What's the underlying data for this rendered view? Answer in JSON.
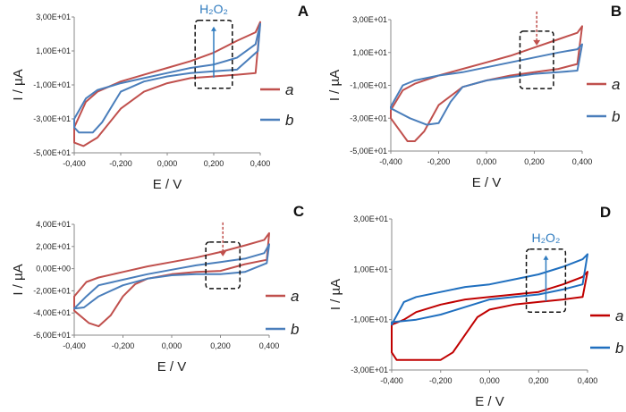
{
  "chart_data": [
    {
      "panel": "A",
      "type": "line",
      "xlabel": "E / V",
      "ylabel": "I / µA",
      "xlim": [
        -0.4,
        0.4
      ],
      "ylim": [
        -50,
        30
      ],
      "xticks": [
        "-0,400",
        "-0,200",
        "0,000",
        "0,200",
        "0,400"
      ],
      "yticks": [
        "3,00E+01",
        "1,00E+01",
        "-1,00E+01",
        "-3,00E+01",
        "-5,00E+01"
      ],
      "annotation": {
        "text": "H₂O₂",
        "direction": "up",
        "color": "#2f7bbf",
        "box_x": [
          0.12,
          0.28
        ],
        "box_y": [
          -12,
          28
        ]
      },
      "series": [
        {
          "name": "a",
          "color": "#c0504d",
          "points": [
            [
              -0.4,
              -35
            ],
            [
              -0.35,
              -20
            ],
            [
              -0.3,
              -14
            ],
            [
              -0.2,
              -8
            ],
            [
              -0.1,
              -4
            ],
            [
              0.0,
              0
            ],
            [
              0.1,
              4
            ],
            [
              0.2,
              9
            ],
            [
              0.3,
              16
            ],
            [
              0.38,
              21
            ],
            [
              0.4,
              27
            ],
            [
              0.38,
              -3
            ],
            [
              0.3,
              -4
            ],
            [
              0.2,
              -5
            ],
            [
              0.1,
              -6
            ],
            [
              0.0,
              -9
            ],
            [
              -0.1,
              -14
            ],
            [
              -0.2,
              -24
            ],
            [
              -0.3,
              -41
            ],
            [
              -0.36,
              -46
            ],
            [
              -0.4,
              -44
            ]
          ]
        },
        {
          "name": "b",
          "color": "#4a7ebb",
          "points": [
            [
              -0.4,
              -30
            ],
            [
              -0.35,
              -18
            ],
            [
              -0.3,
              -13
            ],
            [
              -0.2,
              -9
            ],
            [
              -0.1,
              -6
            ],
            [
              0.0,
              -3
            ],
            [
              0.1,
              0
            ],
            [
              0.2,
              2
            ],
            [
              0.3,
              6
            ],
            [
              0.38,
              14
            ],
            [
              0.4,
              26
            ],
            [
              0.39,
              10
            ],
            [
              0.3,
              -1
            ],
            [
              0.2,
              -2
            ],
            [
              0.1,
              -3
            ],
            [
              0.0,
              -5
            ],
            [
              -0.1,
              -8
            ],
            [
              -0.2,
              -14
            ],
            [
              -0.28,
              -32
            ],
            [
              -0.32,
              -38
            ],
            [
              -0.38,
              -38
            ],
            [
              -0.4,
              -35
            ]
          ]
        }
      ]
    },
    {
      "panel": "B",
      "type": "line",
      "xlabel": "E / V",
      "ylabel": "I / µA",
      "xlim": [
        -0.4,
        0.4
      ],
      "ylim": [
        -50,
        30
      ],
      "xticks": [
        "-0,400",
        "-0,200",
        "0,000",
        "0,200",
        "0,400"
      ],
      "yticks": [
        "3,00E+01",
        "1,00E+01",
        "-1,00E+01",
        "-3,00E+01",
        "-5,00E+01"
      ],
      "annotation": {
        "text": "",
        "direction": "down",
        "color": "#c0504d",
        "box_x": [
          0.14,
          0.28
        ],
        "box_y": [
          -12,
          23
        ]
      },
      "series": [
        {
          "name": "a",
          "color": "#c0504d",
          "points": [
            [
              -0.4,
              -25
            ],
            [
              -0.35,
              -13
            ],
            [
              -0.3,
              -9
            ],
            [
              -0.2,
              -4
            ],
            [
              -0.1,
              0
            ],
            [
              0.0,
              4
            ],
            [
              0.1,
              8
            ],
            [
              0.2,
              13
            ],
            [
              0.3,
              18
            ],
            [
              0.38,
              22
            ],
            [
              0.4,
              26
            ],
            [
              0.38,
              3
            ],
            [
              0.3,
              0
            ],
            [
              0.2,
              -2
            ],
            [
              0.1,
              -4
            ],
            [
              0.0,
              -7
            ],
            [
              -0.1,
              -11
            ],
            [
              -0.2,
              -22
            ],
            [
              -0.26,
              -38
            ],
            [
              -0.3,
              -44
            ],
            [
              -0.33,
              -44
            ],
            [
              -0.37,
              -36
            ],
            [
              -0.4,
              -30
            ]
          ]
        },
        {
          "name": "b",
          "color": "#4a7ebb",
          "points": [
            [
              -0.4,
              -23
            ],
            [
              -0.35,
              -10
            ],
            [
              -0.3,
              -7
            ],
            [
              -0.2,
              -4
            ],
            [
              -0.1,
              -2
            ],
            [
              0.0,
              1
            ],
            [
              0.1,
              4
            ],
            [
              0.2,
              7
            ],
            [
              0.3,
              10
            ],
            [
              0.38,
              12
            ],
            [
              0.4,
              15
            ],
            [
              0.38,
              -1
            ],
            [
              0.3,
              -2
            ],
            [
              0.2,
              -3
            ],
            [
              0.1,
              -5
            ],
            [
              0.0,
              -7
            ],
            [
              -0.1,
              -11
            ],
            [
              -0.15,
              -20
            ],
            [
              -0.2,
              -33
            ],
            [
              -0.25,
              -34
            ],
            [
              -0.32,
              -30
            ],
            [
              -0.4,
              -24
            ]
          ]
        }
      ]
    },
    {
      "panel": "C",
      "type": "line",
      "xlabel": "E / V",
      "ylabel": "I / µA",
      "xlim": [
        -0.4,
        0.4
      ],
      "ylim": [
        -60,
        40
      ],
      "xticks": [
        "-0,400",
        "-0,200",
        "0,000",
        "0,200",
        "0,400"
      ],
      "yticks": [
        "4,00E+01",
        "2,00E+01",
        "0,00E+00",
        "-2,00E+01",
        "-4,00E+01",
        "-6,00E+01"
      ],
      "annotation": {
        "text": "",
        "direction": "down",
        "color": "#c0504d",
        "box_x": [
          0.14,
          0.28
        ],
        "box_y": [
          -18,
          24
        ]
      },
      "series": [
        {
          "name": "a",
          "color": "#c0504d",
          "points": [
            [
              -0.4,
              -25
            ],
            [
              -0.35,
              -12
            ],
            [
              -0.3,
              -8
            ],
            [
              -0.2,
              -3
            ],
            [
              -0.1,
              2
            ],
            [
              0.0,
              6
            ],
            [
              0.1,
              10
            ],
            [
              0.2,
              15
            ],
            [
              0.3,
              21
            ],
            [
              0.38,
              26
            ],
            [
              0.4,
              32
            ],
            [
              0.39,
              8
            ],
            [
              0.3,
              4
            ],
            [
              0.2,
              -2
            ],
            [
              0.1,
              -3
            ],
            [
              0.0,
              -5
            ],
            [
              -0.1,
              -9
            ],
            [
              -0.15,
              -14
            ],
            [
              -0.2,
              -25
            ],
            [
              -0.25,
              -42
            ],
            [
              -0.3,
              -52
            ],
            [
              -0.34,
              -49
            ],
            [
              -0.4,
              -38
            ]
          ]
        },
        {
          "name": "b",
          "color": "#4a7ebb",
          "points": [
            [
              -0.4,
              -36
            ],
            [
              -0.35,
              -25
            ],
            [
              -0.3,
              -15
            ],
            [
              -0.2,
              -10
            ],
            [
              -0.1,
              -5
            ],
            [
              0.0,
              -1
            ],
            [
              0.1,
              3
            ],
            [
              0.2,
              6
            ],
            [
              0.3,
              9
            ],
            [
              0.38,
              14
            ],
            [
              0.4,
              22
            ],
            [
              0.39,
              5
            ],
            [
              0.3,
              -3
            ],
            [
              0.2,
              -5
            ],
            [
              0.1,
              -5
            ],
            [
              0.0,
              -6
            ],
            [
              -0.1,
              -9
            ],
            [
              -0.2,
              -15
            ],
            [
              -0.3,
              -25
            ],
            [
              -0.36,
              -35
            ],
            [
              -0.4,
              -36
            ]
          ]
        }
      ]
    },
    {
      "panel": "D",
      "type": "line",
      "xlabel": "E / V",
      "ylabel": "I / µA",
      "xlim": [
        -0.4,
        0.4
      ],
      "ylim": [
        -30,
        30
      ],
      "xticks": [
        "-0,400",
        "-0,200",
        "0,000",
        "0,200",
        "0,400"
      ],
      "yticks": [
        "3,00E+01",
        "1,00E+01",
        "-1,00E+01",
        "-3,00E+01"
      ],
      "annotation": {
        "text": "H₂O₂",
        "direction": "up",
        "color": "#2f7bbf",
        "box_x": [
          0.15,
          0.31
        ],
        "box_y": [
          -7,
          18
        ]
      },
      "series": [
        {
          "name": "a",
          "color": "#c00000",
          "points": [
            [
              -0.4,
              -12
            ],
            [
              -0.35,
              -10
            ],
            [
              -0.3,
              -7
            ],
            [
              -0.2,
              -4
            ],
            [
              -0.1,
              -2
            ],
            [
              0.0,
              -1
            ],
            [
              0.1,
              0
            ],
            [
              0.2,
              1
            ],
            [
              0.3,
              4
            ],
            [
              0.38,
              7
            ],
            [
              0.4,
              9
            ],
            [
              0.38,
              -1
            ],
            [
              0.3,
              -2
            ],
            [
              0.2,
              -3
            ],
            [
              0.1,
              -4
            ],
            [
              0.0,
              -6
            ],
            [
              -0.05,
              -9
            ],
            [
              -0.1,
              -16
            ],
            [
              -0.15,
              -23
            ],
            [
              -0.2,
              -26
            ],
            [
              -0.3,
              -26
            ],
            [
              -0.38,
              -26
            ],
            [
              -0.4,
              -23
            ],
            [
              -0.4,
              -15
            ]
          ]
        },
        {
          "name": "b",
          "color": "#1f6fbf",
          "points": [
            [
              -0.4,
              -12
            ],
            [
              -0.35,
              -3
            ],
            [
              -0.3,
              -1
            ],
            [
              -0.2,
              1
            ],
            [
              -0.1,
              3
            ],
            [
              0.0,
              4
            ],
            [
              0.1,
              6
            ],
            [
              0.2,
              8
            ],
            [
              0.3,
              11
            ],
            [
              0.38,
              14
            ],
            [
              0.4,
              16
            ],
            [
              0.38,
              4
            ],
            [
              0.3,
              2
            ],
            [
              0.2,
              0
            ],
            [
              0.1,
              -1
            ],
            [
              0.0,
              -2
            ],
            [
              -0.1,
              -5
            ],
            [
              -0.2,
              -8
            ],
            [
              -0.3,
              -10
            ],
            [
              -0.4,
              -11
            ]
          ]
        }
      ]
    }
  ]
}
